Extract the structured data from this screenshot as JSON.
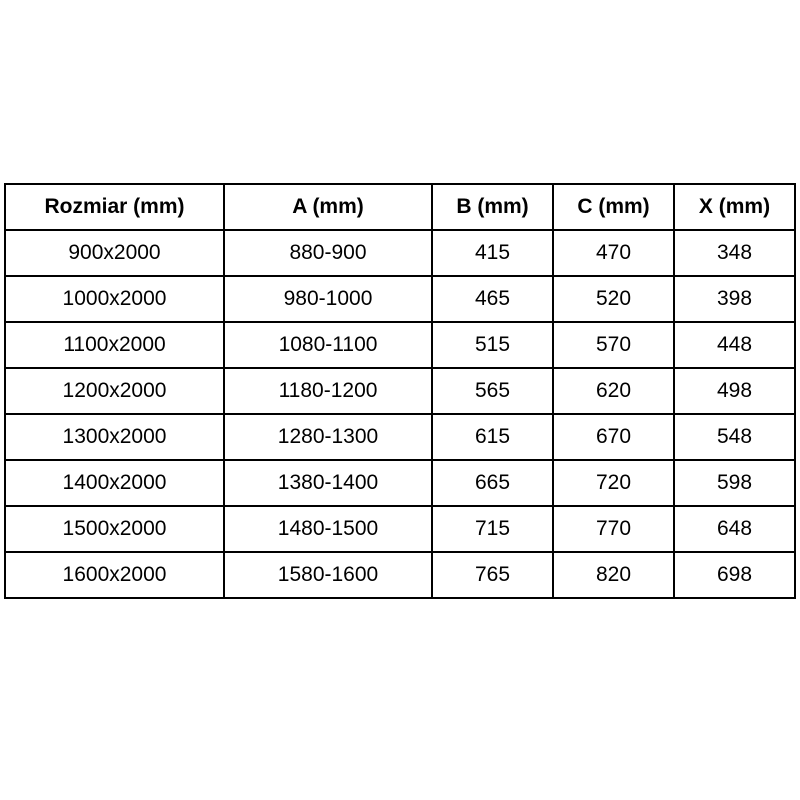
{
  "table": {
    "border_color": "#000000",
    "background_color": "#ffffff",
    "text_color": "#000000",
    "headers": [
      "Rozmiar (mm)",
      "A (mm)",
      "B (mm)",
      "C (mm)",
      "X (mm)"
    ],
    "rows": [
      [
        "900x2000",
        "880-900",
        "415",
        "470",
        "348"
      ],
      [
        "1000x2000",
        "980-1000",
        "465",
        "520",
        "398"
      ],
      [
        "1100x2000",
        "1080-1100",
        "515",
        "570",
        "448"
      ],
      [
        "1200x2000",
        "1180-1200",
        "565",
        "620",
        "498"
      ],
      [
        "1300x2000",
        "1280-1300",
        "615",
        "670",
        "548"
      ],
      [
        "1400x2000",
        "1380-1400",
        "665",
        "720",
        "598"
      ],
      [
        "1500x2000",
        "1480-1500",
        "715",
        "770",
        "648"
      ],
      [
        "1600x2000",
        "1580-1600",
        "765",
        "820",
        "698"
      ]
    ]
  }
}
